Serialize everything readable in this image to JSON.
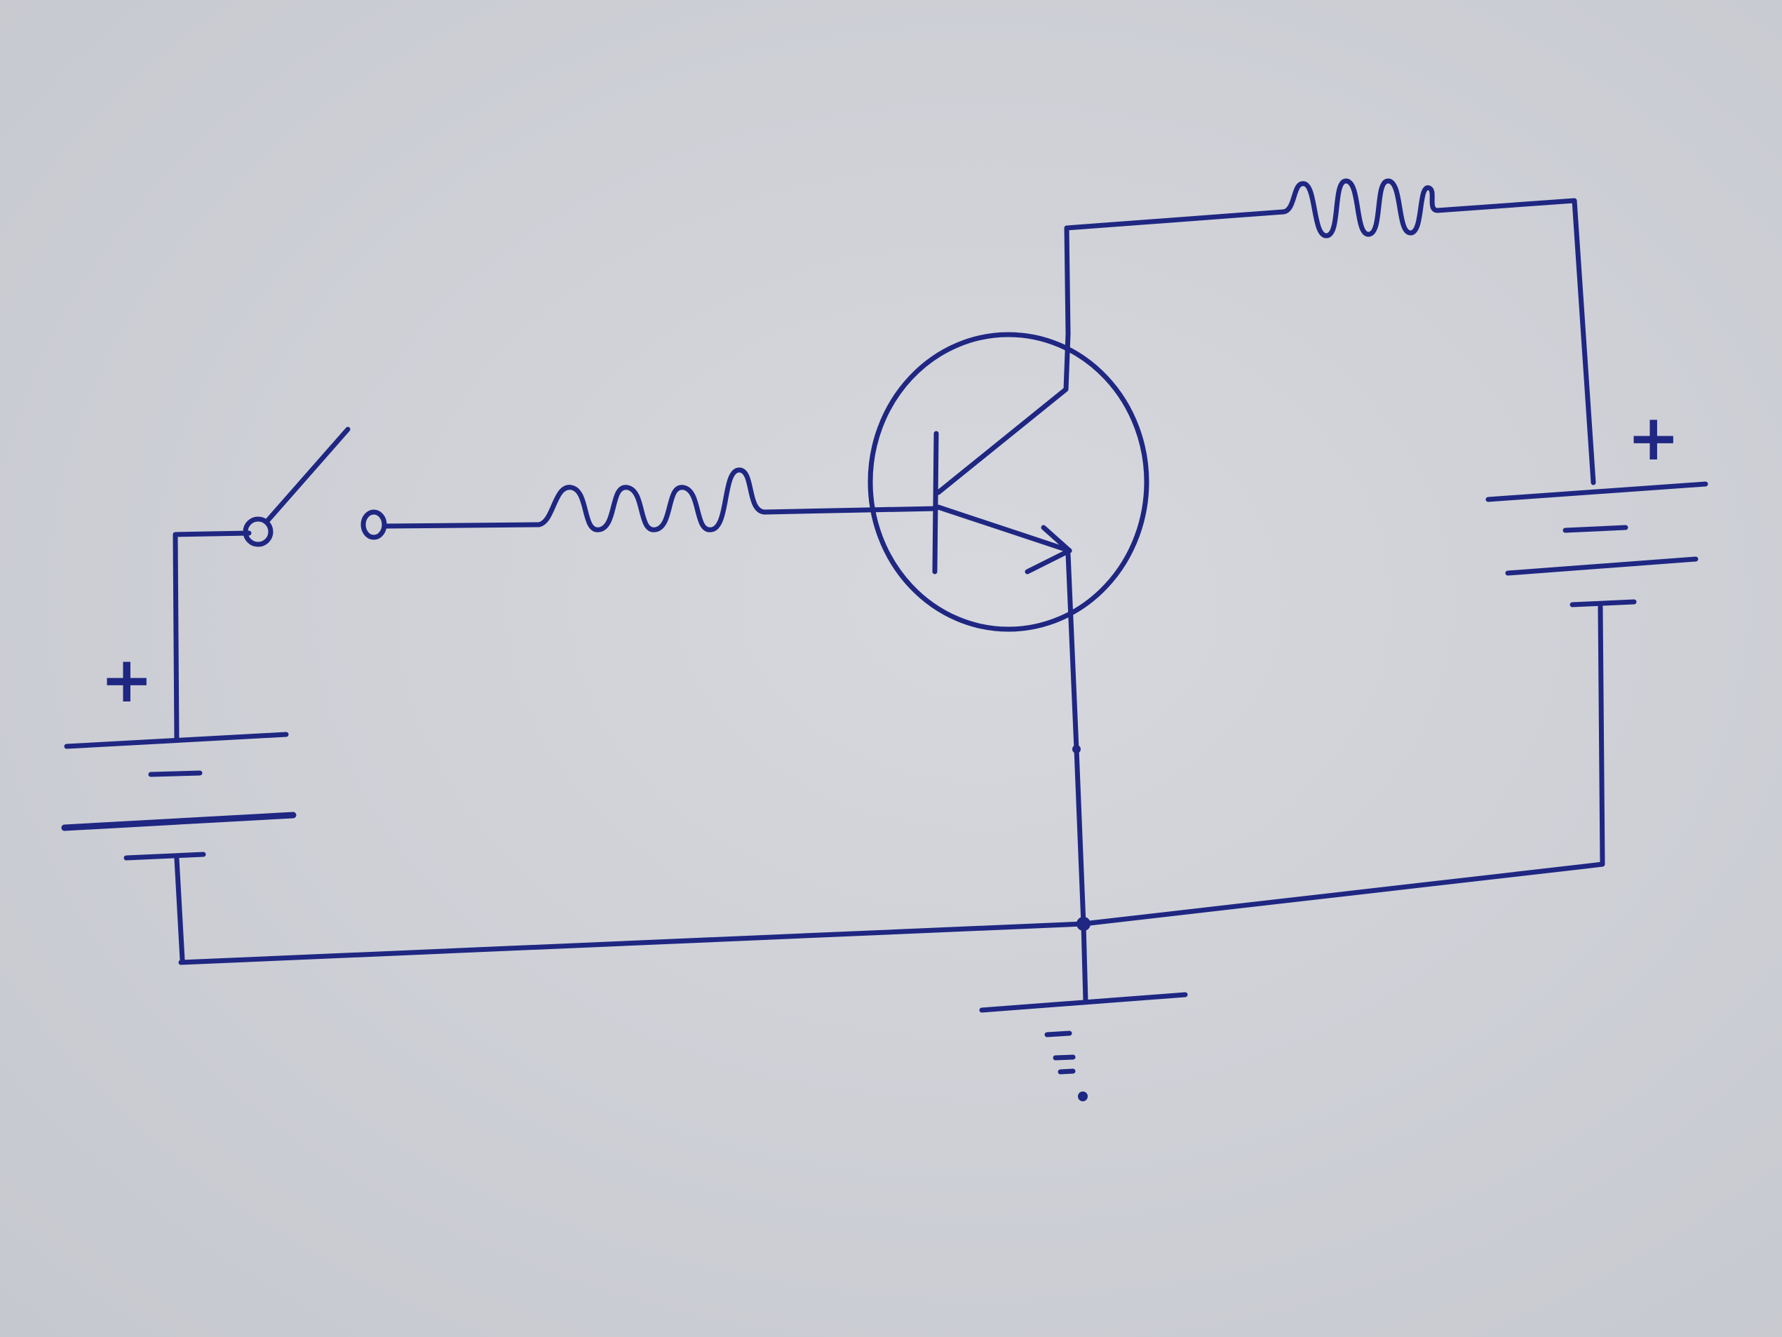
{
  "diagram": {
    "ink_color": "#1f2782",
    "paper_color": "#d2d4d9",
    "components": {
      "input_battery": {
        "type": "battery",
        "plus_label": "+",
        "minus_label": "−"
      },
      "switch": {
        "type": "spst-switch",
        "state": "open"
      },
      "base_resistor": {
        "type": "resistor"
      },
      "transistor": {
        "type": "npn-bjt",
        "terminals": [
          "base",
          "collector",
          "emitter"
        ]
      },
      "collector_resistor": {
        "type": "resistor"
      },
      "supply_battery": {
        "type": "battery",
        "plus_label": "+",
        "minus_label": "−"
      },
      "ground": {
        "type": "ground"
      }
    }
  }
}
